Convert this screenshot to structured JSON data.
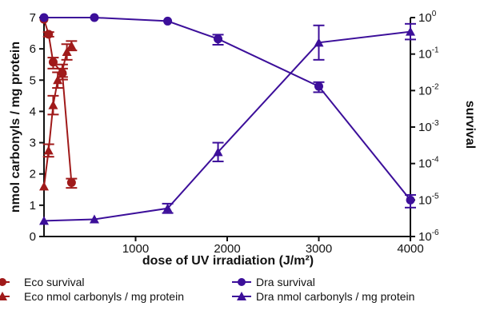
{
  "chart_data": {
    "type": "line",
    "xlabel": "dose of UV irradiation (J/m²)",
    "ylabel_left": "nmol carbonyls / mg protein",
    "ylabel_right": "survival",
    "x_ticks": [
      "1000",
      "2000",
      "3000",
      "4000"
    ],
    "y_left_ticks": [
      "0",
      "1",
      "2",
      "3",
      "4",
      "5",
      "6",
      "7"
    ],
    "y_right_ticks": [
      {
        "base": "10",
        "exp": "-6"
      },
      {
        "base": "10",
        "exp": "-5"
      },
      {
        "base": "10",
        "exp": "-4"
      },
      {
        "base": "10",
        "exp": "-3"
      },
      {
        "base": "10",
        "exp": "-2"
      },
      {
        "base": "10",
        "exp": "-1"
      },
      {
        "base": "10",
        "exp": "0"
      }
    ],
    "xlim": [
      0,
      4000
    ],
    "ylim_left": [
      0,
      7
    ],
    "ylim_right_log10": [
      -6,
      0
    ],
    "legend_position": "bottom",
    "colors": {
      "eco": "#a01a1a",
      "dra": "#3c0f9a"
    },
    "series": [
      {
        "name": "Eco survival",
        "axis": "right",
        "marker": "circle",
        "color": "#a01a1a",
        "x": [
          0,
          50,
          100,
          200,
          300
        ],
        "y": [
          0.9,
          0.35,
          0.06,
          0.03,
          3e-05
        ],
        "err": [
          0,
          0.05,
          0.02,
          0.01,
          8.5e-06
        ]
      },
      {
        "name": "Eco nmol carbonyls / mg protein",
        "axis": "left",
        "marker": "triangle",
        "color": "#a01a1a",
        "x": [
          0,
          50,
          100,
          150,
          200,
          250,
          300
        ],
        "y": [
          1.6,
          2.75,
          4.2,
          5.0,
          5.3,
          5.9,
          6.1
        ],
        "err": [
          0,
          0.2,
          0.3,
          0.25,
          0.2,
          0.25,
          0.15
        ]
      },
      {
        "name": "Dra survival",
        "axis": "right",
        "marker": "circle",
        "color": "#3c0f9a",
        "x": [
          0,
          550,
          1350,
          1900,
          3000,
          4000
        ],
        "y": [
          1.0,
          1.0,
          0.8,
          0.26,
          0.013,
          1e-05
        ],
        "err": [
          0,
          0,
          0,
          0.08,
          0.004,
          3.8e-06
        ]
      },
      {
        "name": "Dra nmol carbonyls / mg protein",
        "axis": "left",
        "marker": "triangle",
        "color": "#3c0f9a",
        "x": [
          0,
          550,
          1350,
          1900,
          3000,
          4000
        ],
        "y": [
          0.5,
          0.55,
          0.9,
          2.7,
          6.2,
          6.55
        ],
        "err": [
          0,
          0,
          0.15,
          0.3,
          0.55,
          0.25
        ]
      }
    ]
  }
}
